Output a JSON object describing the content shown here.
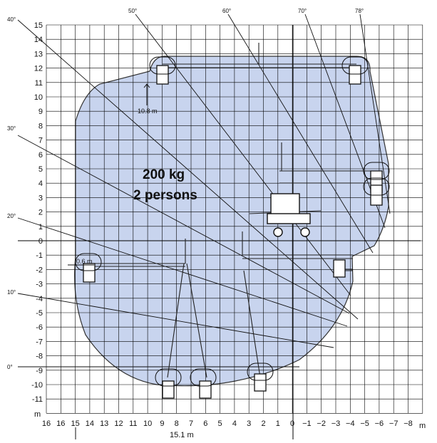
{
  "axes": {
    "y_unit": "m",
    "x_unit": "m",
    "y_ticks": [
      "15",
      "14",
      "13",
      "12",
      "11",
      "10",
      "9",
      "8",
      "7",
      "6",
      "5",
      "4",
      "3",
      "2",
      "1",
      "0",
      "-1",
      "-2",
      "-3",
      "-4",
      "-5",
      "-6",
      "-7",
      "-8",
      "-9",
      "-10",
      "-11"
    ],
    "x_ticks": [
      "16",
      "16",
      "15",
      "14",
      "13",
      "12",
      "11",
      "10",
      "9",
      "8",
      "7",
      "6",
      "5",
      "4",
      "3",
      "2",
      "1",
      "0",
      "−1",
      "−2",
      "−3",
      "−4",
      "−5",
      "−6",
      "−7",
      "−8"
    ]
  },
  "load": {
    "weight": "200 kg",
    "persons": "2 persons"
  },
  "angles": [
    "40°",
    "50°",
    "60°",
    "70°",
    "78°",
    "30°",
    "20°",
    "10°",
    "0°"
  ],
  "dimensions": {
    "height_label": "10.8 m",
    "offset_label": "0.6 m",
    "outreach_label": "15.1 m"
  },
  "colors": {
    "envelope_fill": "#c8d4ee",
    "envelope_stroke": "#333333",
    "grid": "#000000",
    "ink": "#111111"
  }
}
